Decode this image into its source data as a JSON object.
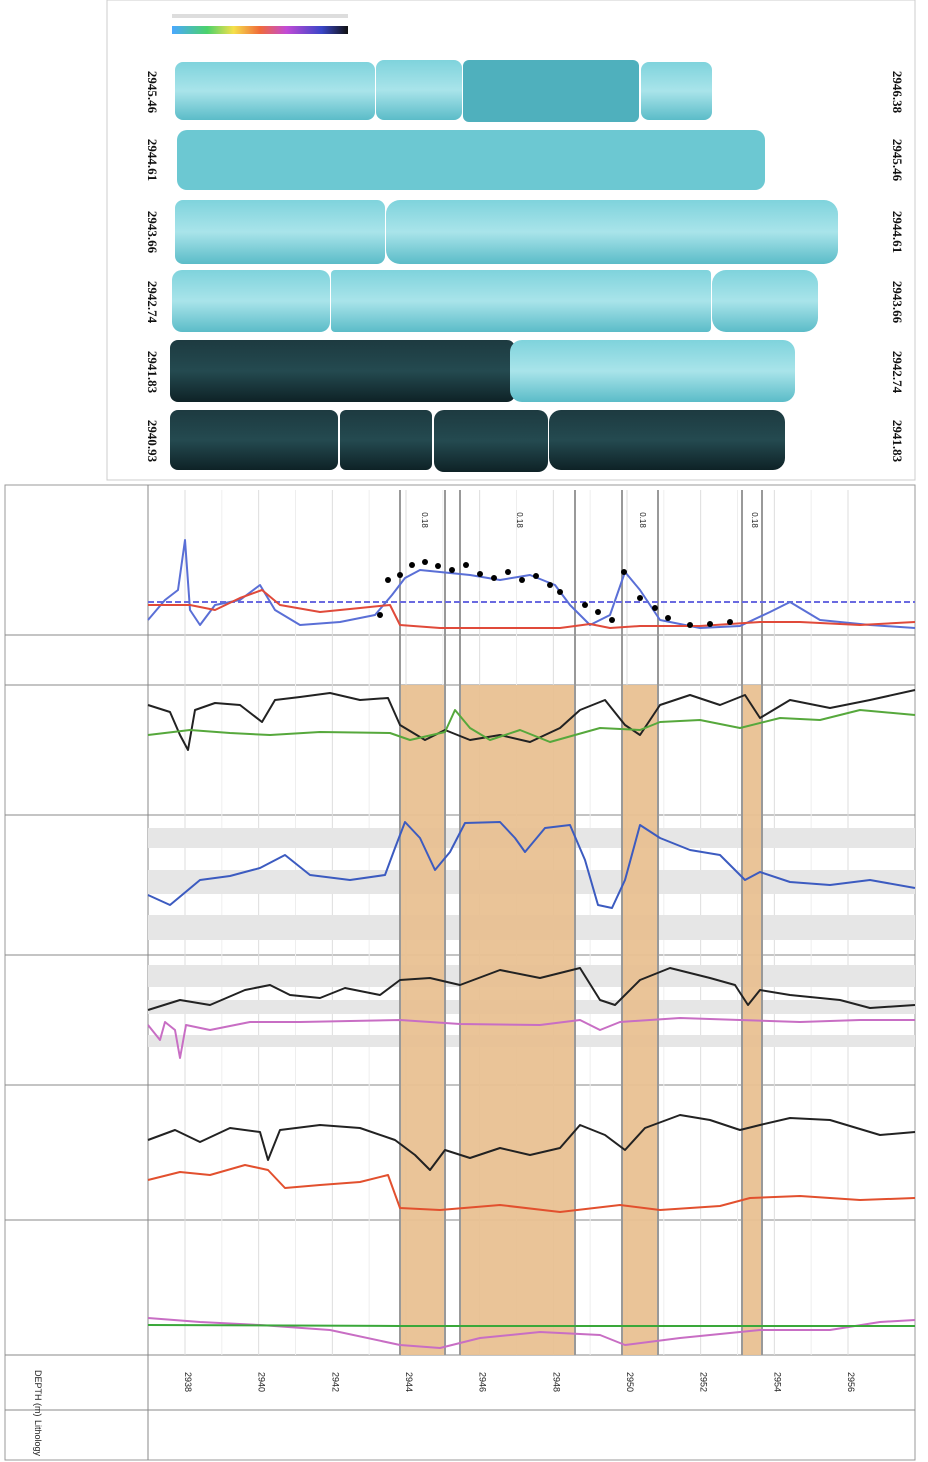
{
  "core": {
    "left_depths": [
      "2945.46",
      "2944.61",
      "2943.66",
      "2942.74",
      "2941.83",
      "2940.93"
    ],
    "right_depths": [
      "2946.38",
      "2945.46",
      "2944.61",
      "2943.66",
      "2942.74",
      "2941.83"
    ]
  },
  "log": {
    "depth_header": "DEPTH (m)",
    "lithology_header": "Lithology",
    "depth_ticks": [
      2938,
      2940,
      2942,
      2944,
      2946,
      2948,
      2950,
      2952,
      2954,
      2956
    ],
    "interval_labels": [
      "0.18",
      "0.18",
      "0.18",
      "0.18"
    ]
  }
}
